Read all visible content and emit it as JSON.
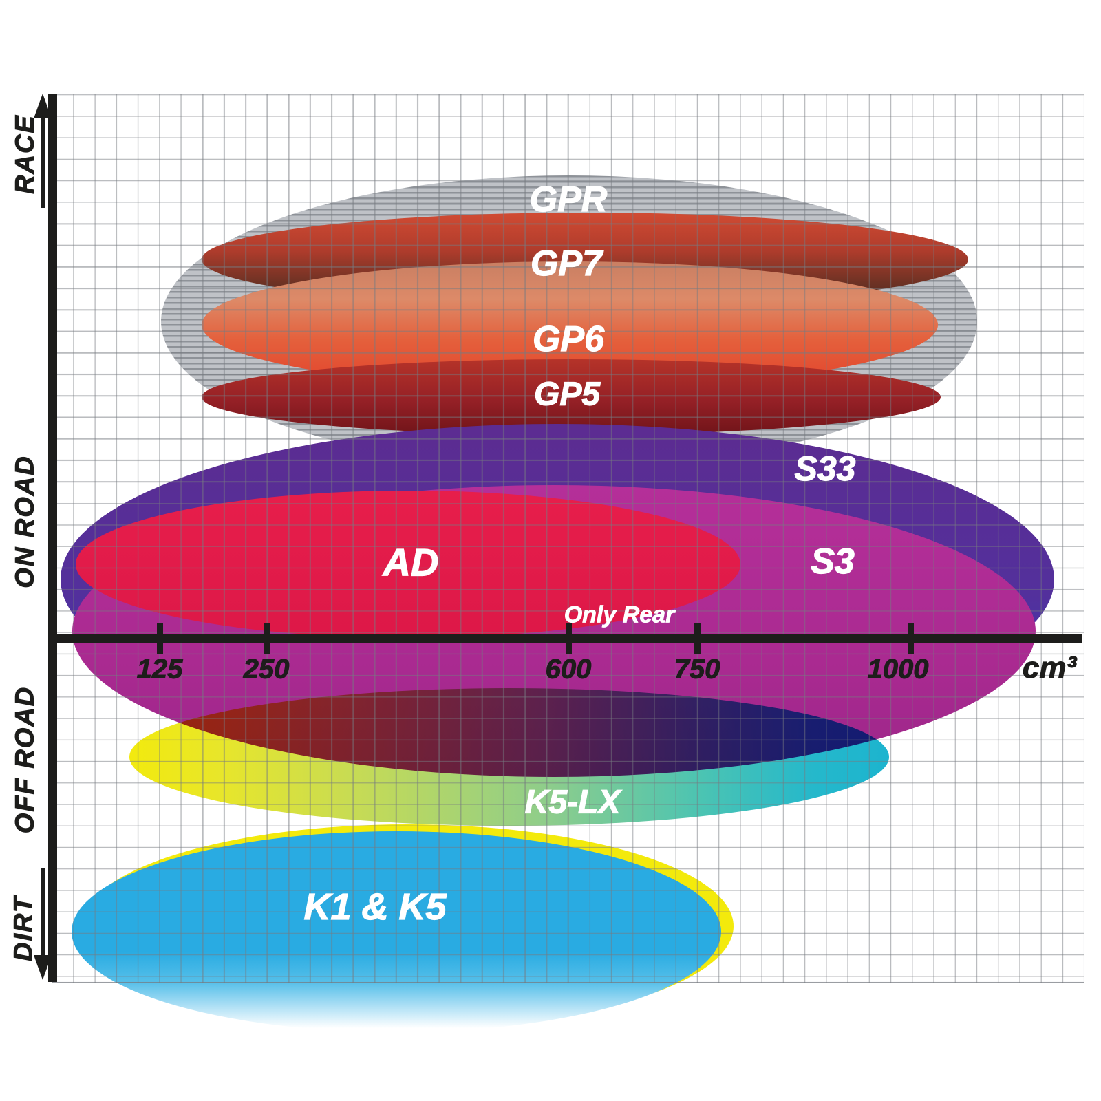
{
  "labels": {
    "gpr": "GPR",
    "gp7": "GP7",
    "gp6": "GP6",
    "gp5": "GP5",
    "s33": "S33",
    "s3": "S3",
    "ad": "AD",
    "only_rear": "Only Rear",
    "k5lx": "K5-LX",
    "k1k5": "K1 & K5"
  },
  "axis": {
    "race": "RACE",
    "on_road": "ON ROAD",
    "off_road": "OFF ROAD",
    "dirt": "DIRT",
    "t125": "125",
    "t250": "250",
    "t600": "600",
    "t750": "750",
    "t1000": "1000",
    "unit": "cm³"
  },
  "chart_data": {
    "type": "area",
    "subtype": "ellipse-range-diagram",
    "title": "Brake pad compound application ranges",
    "xlabel": "cm³",
    "x_ticks": [
      125,
      250,
      600,
      750,
      1000
    ],
    "x_range_px_linear": true,
    "ylabel_categories_top_to_bottom": [
      "RACE",
      "ON ROAD",
      "OFF ROAD",
      "DIRT"
    ],
    "grid": true,
    "series": [
      {
        "name": "GPR",
        "displacement_cc": [
          125,
          1080
        ],
        "usage": [
          "RACE"
        ],
        "fill": "gray horizontal stripes",
        "colors": [
          "#8e9298",
          "#bfc2c7"
        ]
      },
      {
        "name": "GP7",
        "displacement_cc": [
          175,
          1070
        ],
        "usage": [
          "RACE",
          "ON ROAD"
        ],
        "fill": "gradient",
        "colors": [
          "#d14b33",
          "#4a2a20"
        ]
      },
      {
        "name": "GP6",
        "displacement_cc": [
          175,
          1030
        ],
        "usage": [
          "RACE",
          "ON ROAD"
        ],
        "fill": "gradient",
        "colors": [
          "#dd8a68",
          "#e2432c"
        ]
      },
      {
        "name": "GP5",
        "displacement_cc": [
          175,
          1035
        ],
        "usage": [
          "RACE",
          "ON ROAD"
        ],
        "fill": "gradient",
        "colors": [
          "#b53329",
          "#701419"
        ]
      },
      {
        "name": "S33",
        "displacement_cc": [
          10,
          1170
        ],
        "usage": [
          "ON ROAD"
        ],
        "fill": "gradient",
        "colors": [
          "#5c2c91",
          "#3f55c2"
        ]
      },
      {
        "name": "S3",
        "displacement_cc": [
          25,
          1145
        ],
        "usage": [
          "ON ROAD"
        ],
        "fill": "solid",
        "colors": [
          "#aa2a91"
        ]
      },
      {
        "name": "AD",
        "displacement_cc": [
          30,
          800
        ],
        "usage": [
          "ON ROAD"
        ],
        "note": "Only Rear",
        "fill": "solid",
        "colors": [
          "#e2194a"
        ]
      },
      {
        "name": "K5-LX",
        "displacement_cc": [
          90,
          975
        ],
        "usage": [
          "OFF ROAD"
        ],
        "fill": "gradient",
        "colors": [
          "#f2ea0e",
          "#1cb4cf"
        ]
      },
      {
        "name": "K1 & K5",
        "displacement_cc": [
          25,
          780
        ],
        "usage": [
          "OFF ROAD",
          "DIRT"
        ],
        "fill": "solid fading to white at bottom",
        "colors": [
          "#29abe2",
          "#f3ea0c"
        ]
      }
    ],
    "legend_position": "none",
    "annotations": [
      "Only Rear"
    ]
  }
}
